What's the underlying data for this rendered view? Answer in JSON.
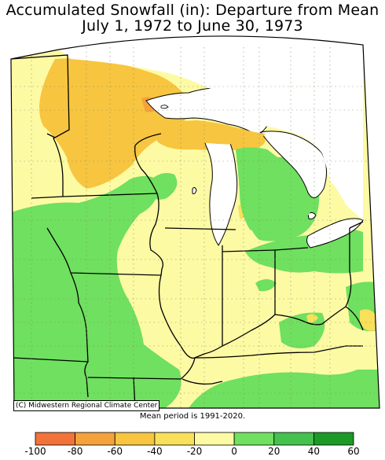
{
  "title_line1": "Accumulated Snowfall (in): Departure from Mean",
  "title_line2": "July 1, 1972 to June 30, 1973",
  "credit": "(C) Midwestern Regional Climate Center",
  "mean_period": "Mean period is 1991-2020.",
  "legend": {
    "bins": [
      {
        "from": -100,
        "to": -80,
        "color": "#f2733a"
      },
      {
        "from": -80,
        "to": -60,
        "color": "#f5a23d"
      },
      {
        "from": -60,
        "to": -40,
        "color": "#f7c53f"
      },
      {
        "from": -40,
        "to": -20,
        "color": "#f8e05a"
      },
      {
        "from": -20,
        "to": 0,
        "color": "#fdfaa4"
      },
      {
        "from": 0,
        "to": 20,
        "color": "#6fe05f"
      },
      {
        "from": 20,
        "to": 40,
        "color": "#45c24d"
      },
      {
        "from": 40,
        "to": 60,
        "color": "#1b9a26"
      }
    ],
    "tick_labels": [
      "-100",
      "-80",
      "-60",
      "-40",
      "-20",
      "0",
      "20",
      "40",
      "60"
    ]
  },
  "colors": {
    "near_normal": "#fdfaa4",
    "above_normal": "#6fe05f",
    "below_normal_light": "#f8e05a",
    "below_normal": "#f7c53f",
    "below_normal_strong": "#f5a23d",
    "water": "#ffffff"
  }
}
